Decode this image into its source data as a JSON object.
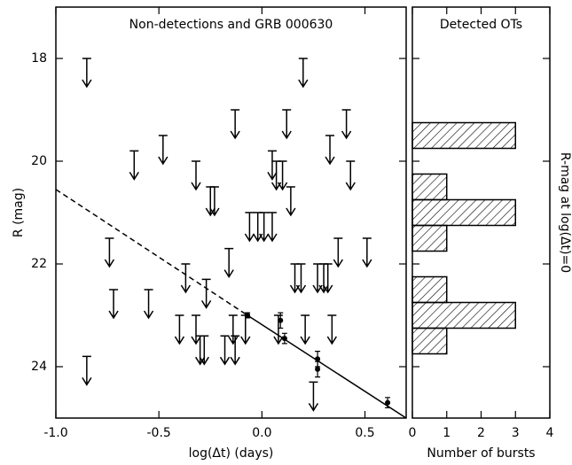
{
  "chart_data": [
    {
      "type": "scatter",
      "title": "Non-detections and GRB 000630",
      "xlabel": "log(Δt) (days)",
      "ylabel": "R (mag)",
      "xlim": [
        -1.0,
        0.7
      ],
      "xticks": [
        {
          "value": -1.0,
          "label": "-1.0"
        },
        -0.5,
        {
          "value": 0.0,
          "label": "0.0"
        },
        0.5
      ],
      "ylim": [
        25,
        17
      ],
      "yticks": [
        18,
        20,
        22,
        24
      ],
      "color": "#000000",
      "upper_limits": {
        "x": [
          -0.85,
          -0.85,
          -0.74,
          -0.72,
          -0.62,
          -0.55,
          -0.48,
          -0.4,
          -0.37,
          -0.32,
          -0.32,
          -0.3,
          -0.28,
          -0.27,
          -0.25,
          -0.23,
          -0.18,
          -0.16,
          -0.14,
          -0.13,
          -0.13,
          -0.08,
          -0.06,
          -0.02,
          0.01,
          0.05,
          0.05,
          0.07,
          0.08,
          0.1,
          0.12,
          0.14,
          0.16,
          0.19,
          0.2,
          0.21,
          0.25,
          0.27,
          0.3,
          0.32,
          0.33,
          0.34,
          0.37,
          0.41,
          0.43,
          0.51
        ],
        "y": [
          18.0,
          23.8,
          21.5,
          22.5,
          19.8,
          22.5,
          19.5,
          23.0,
          22.0,
          20.0,
          23.0,
          23.4,
          23.4,
          22.3,
          20.5,
          20.5,
          23.4,
          21.7,
          23.0,
          19.0,
          23.4,
          23.0,
          21.0,
          21.0,
          21.0,
          19.8,
          21.0,
          20.0,
          23.0,
          20.0,
          19.0,
          20.5,
          22.0,
          22.0,
          18.0,
          23.0,
          24.3,
          22.0,
          22.0,
          22.0,
          19.5,
          23.0,
          21.5,
          19.0,
          20.0,
          21.5
        ]
      },
      "detections": {
        "x": [
          -0.07,
          0.09,
          0.11,
          0.27,
          0.27,
          0.61
        ],
        "y": [
          23.0,
          23.1,
          23.45,
          23.85,
          24.05,
          24.7
        ],
        "yerr": [
          0.05,
          0.15,
          0.1,
          0.15,
          0.15,
          0.1
        ]
      },
      "lines": [
        {
          "style": "dashed",
          "x": [
            -1.0,
            -0.07
          ],
          "y": [
            20.55,
            23.0
          ]
        },
        {
          "style": "solid",
          "x": [
            -0.07,
            0.7
          ],
          "y": [
            23.0,
            25.0
          ]
        }
      ]
    },
    {
      "type": "histogram",
      "orientation": "horizontal",
      "title": "Detected OTs",
      "xlabel": "Number of bursts",
      "ylabel": "R-mag at log(Δt)=0",
      "xlim": [
        0,
        4
      ],
      "xticks": [
        0,
        1,
        2,
        3,
        4
      ],
      "ylim": [
        25,
        17
      ],
      "yticks": [
        18,
        20,
        22,
        24
      ],
      "ytick_labels": false,
      "hatch": true,
      "color": "#000000",
      "bins": [
        19.25,
        19.75,
        20.25,
        20.75,
        21.25,
        21.75,
        22.25,
        22.75,
        23.25,
        23.75
      ],
      "counts": [
        3,
        0,
        1,
        3,
        1,
        0,
        1,
        3,
        1
      ]
    }
  ]
}
